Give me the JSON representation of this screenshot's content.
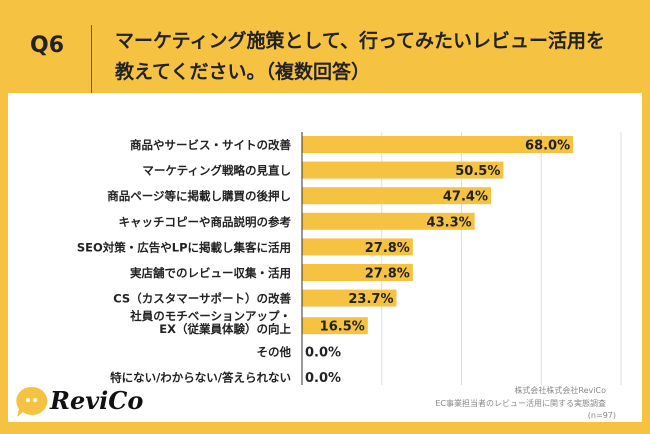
{
  "header": {
    "question": "Q6",
    "title_line1": "マーケティング施策として、行ってみたいレビュー活用を",
    "title_line2": "教えてください。（複数回答）"
  },
  "colors": {
    "background": "#F5C242",
    "bar": "#F5C242",
    "text": "#222222"
  },
  "chart_data": {
    "type": "bar",
    "orientation": "horizontal",
    "categories": [
      "商品やサービス・サイトの改善",
      "マーケティング戦略の見直し",
      "商品ページ等に掲載し購買の後押し",
      "キャッチコピーや商品説明の参考",
      "SEO対策・広告やLPに掲載し集客に活用",
      "実店舗でのレビュー収集・活用",
      "CS（カスタマーサポート）の改善",
      [
        "社員のモチベーションアップ・",
        "EX（従業員体験）の向上"
      ],
      "その他",
      "特にない/わからない/答えられない"
    ],
    "values": [
      68.0,
      50.5,
      47.4,
      43.3,
      27.8,
      27.8,
      23.7,
      16.5,
      0.0,
      0.0
    ],
    "value_labels": [
      "68.0%",
      "50.5%",
      "47.4%",
      "43.3%",
      "27.8%",
      "27.8%",
      "23.7%",
      "16.5%",
      "0.0%",
      "0.0%"
    ],
    "xlim": [
      0,
      80
    ],
    "grid": true,
    "grid_step": 20
  },
  "footer": {
    "company": "株式会社株式会社ReviCo",
    "survey": "EC事業担当者のレビュー活用に関する実態調査",
    "n": "(n=97)"
  },
  "logo": {
    "text": "ReviCo",
    "icon": "speech-bubble-icon"
  }
}
